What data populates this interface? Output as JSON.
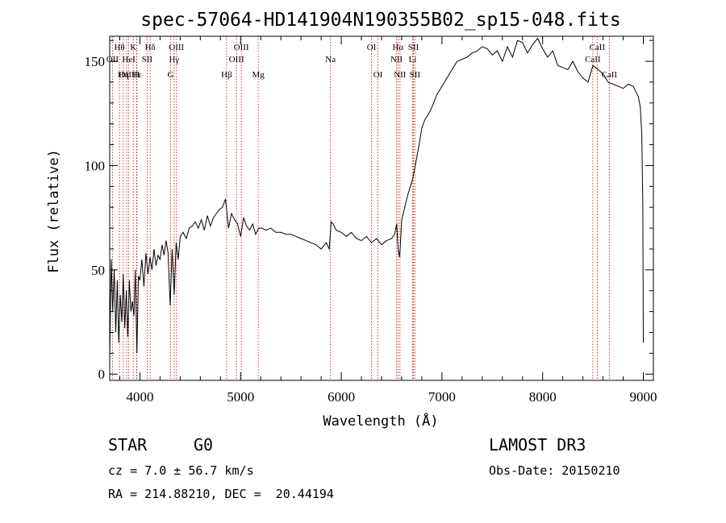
{
  "chart_data": {
    "type": "line",
    "title": "spec-57064-HD141904N190355B02_sp15-048.fits",
    "xlabel": "Wavelength (Å)",
    "ylabel": "Flux (relative)",
    "xlim": [
      3700,
      9100
    ],
    "ylim": [
      -3,
      162
    ],
    "xticks": [
      4000,
      5000,
      6000,
      7000,
      8000,
      9000
    ],
    "yticks": [
      0,
      50,
      100,
      150
    ],
    "series": [
      {
        "name": "flux",
        "x": [
          3700,
          3715,
          3730,
          3745,
          3760,
          3775,
          3790,
          3805,
          3820,
          3835,
          3850,
          3865,
          3880,
          3895,
          3910,
          3925,
          3940,
          3955,
          3970,
          3985,
          4000,
          4020,
          4040,
          4060,
          4080,
          4100,
          4120,
          4140,
          4160,
          4180,
          4200,
          4220,
          4240,
          4260,
          4280,
          4300,
          4320,
          4340,
          4360,
          4380,
          4400,
          4430,
          4460,
          4490,
          4520,
          4550,
          4580,
          4610,
          4640,
          4670,
          4700,
          4730,
          4760,
          4790,
          4820,
          4850,
          4880,
          4910,
          4940,
          4970,
          5000,
          5030,
          5060,
          5090,
          5120,
          5150,
          5180,
          5210,
          5250,
          5300,
          5350,
          5400,
          5450,
          5500,
          5550,
          5600,
          5650,
          5700,
          5750,
          5800,
          5850,
          5880,
          5900,
          5920,
          5950,
          6000,
          6050,
          6100,
          6150,
          6200,
          6250,
          6300,
          6350,
          6400,
          6450,
          6500,
          6530,
          6550,
          6565,
          6580,
          6600,
          6630,
          6660,
          6700,
          6720,
          6750,
          6780,
          6800,
          6830,
          6870,
          6900,
          6950,
          7000,
          7050,
          7100,
          7150,
          7200,
          7250,
          7300,
          7350,
          7400,
          7450,
          7500,
          7550,
          7600,
          7650,
          7700,
          7750,
          7800,
          7850,
          7900,
          7950,
          8000,
          8050,
          8100,
          8150,
          8200,
          8250,
          8300,
          8350,
          8400,
          8450,
          8500,
          8550,
          8600,
          8650,
          8700,
          8750,
          8800,
          8850,
          8900,
          8950,
          8970,
          8985,
          8995,
          9000
        ],
        "values": [
          8,
          55,
          30,
          50,
          20,
          45,
          15,
          38,
          25,
          48,
          22,
          40,
          18,
          45,
          30,
          35,
          28,
          50,
          10,
          47,
          45,
          55,
          42,
          58,
          48,
          56,
          50,
          60,
          52,
          57,
          55,
          62,
          57,
          64,
          58,
          33,
          60,
          38,
          63,
          55,
          66,
          68,
          65,
          70,
          71,
          73,
          70,
          74,
          69,
          76,
          71,
          75,
          77,
          79,
          80,
          84,
          70,
          77,
          74,
          72,
          66,
          75,
          71,
          69,
          72,
          67,
          70,
          70,
          69,
          70,
          68,
          68,
          67,
          67,
          66,
          65,
          64,
          63,
          62,
          60,
          63,
          60,
          73,
          72,
          69,
          68,
          66,
          68,
          65,
          64,
          66,
          63,
          65,
          62,
          64,
          65,
          67,
          72,
          60,
          56,
          74,
          80,
          86,
          92,
          96,
          104,
          112,
          118,
          122,
          125,
          128,
          134,
          138,
          142,
          146,
          150,
          151,
          152,
          154,
          155,
          157,
          156,
          153,
          155,
          150,
          157,
          152,
          160,
          159,
          154,
          158,
          161,
          156,
          152,
          155,
          148,
          147,
          146,
          150,
          145,
          142,
          140,
          148,
          146,
          144,
          140,
          139,
          138,
          137,
          139,
          138,
          133,
          128,
          115,
          80,
          15
        ]
      }
    ],
    "line_markers": [
      {
        "label": "Hθ",
        "wavelength": 3797,
        "row": 1
      },
      {
        "label": "OII",
        "wavelength": 3727,
        "row": 2
      },
      {
        "label": "OIII",
        "wavelength": 3869,
        "row": 3
      },
      {
        "label": "HeI",
        "wavelength": 3889,
        "row": 2
      },
      {
        "label": "Hε",
        "wavelength": 3970,
        "row": 3
      },
      {
        "label": "Hη",
        "wavelength": 3835,
        "row": 3
      },
      {
        "label": "K",
        "wavelength": 3934,
        "row": 1
      },
      {
        "label": "H",
        "wavelength": 3968,
        "row": 3
      },
      {
        "label": "SII",
        "wavelength": 4072,
        "row": 2
      },
      {
        "label": "Hδ",
        "wavelength": 4102,
        "row": 1
      },
      {
        "label": "OIII",
        "wavelength": 4363,
        "row": 1
      },
      {
        "label": "Hγ",
        "wavelength": 4340,
        "row": 2
      },
      {
        "label": "G",
        "wavelength": 4305,
        "row": 3
      },
      {
        "label": "Hβ",
        "wavelength": 4861,
        "row": 3
      },
      {
        "label": "OIII",
        "wavelength": 5007,
        "row": 1
      },
      {
        "label": "OIII",
        "wavelength": 4959,
        "row": 2
      },
      {
        "label": "Mg",
        "wavelength": 5175,
        "row": 3
      },
      {
        "label": "Na",
        "wavelength": 5893,
        "row": 2
      },
      {
        "label": "OI",
        "wavelength": 6300,
        "row": 1
      },
      {
        "label": "OI",
        "wavelength": 6364,
        "row": 3
      },
      {
        "label": "Hα",
        "wavelength": 6563,
        "row": 1
      },
      {
        "label": "NII",
        "wavelength": 6548,
        "row": 2
      },
      {
        "label": "NII",
        "wavelength": 6583,
        "row": 3
      },
      {
        "label": "SII",
        "wavelength": 6716,
        "row": 1
      },
      {
        "label": "Li",
        "wavelength": 6708,
        "row": 2
      },
      {
        "label": "SII",
        "wavelength": 6731,
        "row": 3
      },
      {
        "label": "CaII",
        "wavelength": 8542,
        "row": 1
      },
      {
        "label": "CaII",
        "wavelength": 8498,
        "row": 2
      },
      {
        "label": "CaII",
        "wavelength": 8662,
        "row": 3
      }
    ]
  },
  "info": {
    "class_label": "STAR",
    "subclass": "G0",
    "survey": "LAMOST DR3",
    "redshift": "cz = 7.0 ± 56.7 km/s",
    "obs_date": "Obs-Date: 20150210",
    "coords": "RA = 214.88210, DEC =  20.44194"
  }
}
